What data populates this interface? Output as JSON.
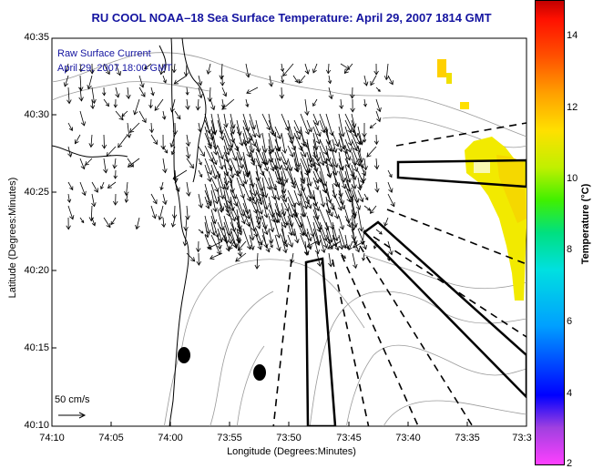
{
  "title": "RU COOL  NOAA–18  Sea Surface Temperature:  April 29, 2007 1814 GMT",
  "legend": {
    "line1": "Raw Surface Current",
    "line2": "April 29, 2007 18:00 GMT"
  },
  "axes": {
    "ylabel": "Latitude (Degrees:Minutes)",
    "xlabel": "Longitude (Degrees:Minutes)",
    "y_ticks": [
      "40:35",
      "40:30",
      "40:25",
      "40:20",
      "40:15",
      "40:10"
    ],
    "x_ticks": [
      "74:10",
      "74:05",
      "74:00",
      "73:55",
      "73:50",
      "73:45",
      "73:40",
      "73:35",
      "73:3"
    ]
  },
  "scale": {
    "label": "50 cm/s"
  },
  "colorbar": {
    "label": "Temperature (°C)",
    "ticks": [
      "14",
      "12",
      "10",
      "8",
      "6",
      "4",
      "2"
    ],
    "min": 2,
    "max": 15
  },
  "colors": {
    "title": "#1414a0",
    "sst_warm": "#f5e000",
    "sst_mid": "#e8f000",
    "coastline": "#000000",
    "bathymetry": "#999999"
  }
}
